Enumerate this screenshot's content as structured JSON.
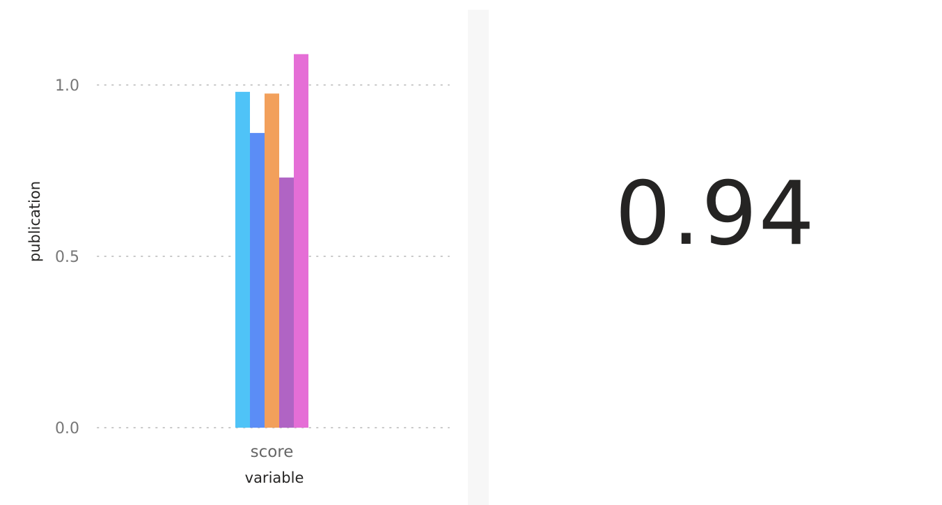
{
  "chart_data": {
    "type": "bar",
    "categories": [
      "score"
    ],
    "series": [
      {
        "values": [
          0.98
        ],
        "color": "#4FC3F7"
      },
      {
        "values": [
          0.86
        ],
        "color": "#5B8DF6"
      },
      {
        "values": [
          0.975
        ],
        "color": "#F2A05B"
      },
      {
        "values": [
          0.73
        ],
        "color": "#B064C4"
      },
      {
        "values": [
          1.09
        ],
        "color": "#E56ED6"
      }
    ],
    "xlabel": "variable",
    "ylabel": "publication",
    "ylim": [
      0,
      1.15
    ],
    "yticks": [
      {
        "value": 0.0,
        "label": "0.0"
      },
      {
        "value": 0.5,
        "label": "0.5"
      },
      {
        "value": 1.0,
        "label": "1.0"
      }
    ],
    "grid": "dotted horizontal"
  },
  "card": {
    "value": "0.94"
  }
}
